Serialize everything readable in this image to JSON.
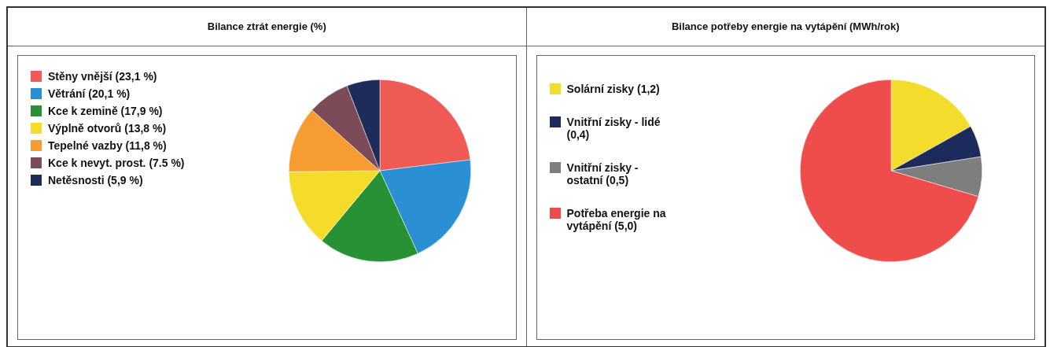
{
  "chart_data": [
    {
      "type": "pie",
      "title": "Bilance ztrát energie (%)",
      "legend": "left",
      "categories": [
        "Stěny vnější (23,1 %)",
        "Větrání (20,1 %)",
        "Kce k zemině (17,9 %)",
        "Výplně otvorů (13,8 %)",
        "Tepelné vazby (11,8 %)",
        "Kce k nevyt. prost. (7.5 %)",
        "Netěsnosti (5,9 %)"
      ],
      "values": [
        23.1,
        20.1,
        17.9,
        13.8,
        11.8,
        7.5,
        5.9
      ],
      "colors": [
        "#ef5a55",
        "#2b8fd3",
        "#289136",
        "#f6dc2a",
        "#f79c33",
        "#7b4b57",
        "#1e2c5a"
      ]
    },
    {
      "type": "pie",
      "title": "Bilance potřeby energie na vytápění (MWh/rok)",
      "legend": "left",
      "categories": [
        "Solární zisky (1,2)",
        "Vnitřní zisky - lidé (0,4)",
        "Vnitřní zisky - ostatní (0,5)",
        "Potřeba energie na vytápění (5,0)"
      ],
      "values": [
        1.2,
        0.4,
        0.5,
        5.0
      ],
      "colors": [
        "#f3dc2c",
        "#1c2b5b",
        "#7e7e7e",
        "#ef4d4b"
      ]
    }
  ]
}
